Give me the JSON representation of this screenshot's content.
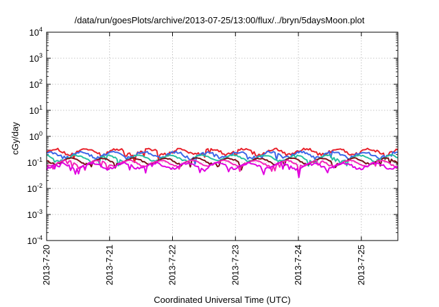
{
  "chart_data": {
    "type": "line",
    "title": "/data/run/goesPlots/archive/2013-07-25/13:00/flux/../bryn/5daysMoon.plot",
    "xlabel": "Coordinated Universal Time (UTC)",
    "ylabel": "cGy/day",
    "yscale": "log",
    "ylim_exp": [
      -4,
      4
    ],
    "xlim_days": [
      0,
      5.58
    ],
    "x_ticks": [
      {
        "label": "2013-7-20",
        "day": 0
      },
      {
        "label": "2013-7-21",
        "day": 1
      },
      {
        "label": "2013-7-22",
        "day": 2
      },
      {
        "label": "2013-7-23",
        "day": 3
      },
      {
        "label": "2013-7-24",
        "day": 4
      },
      {
        "label": "2013-7-25",
        "day": 5
      }
    ],
    "y_ticks": [
      -4,
      -3,
      -2,
      -1,
      0,
      1,
      2,
      3,
      4
    ],
    "grid": true,
    "series": [
      {
        "color": "#e8202a",
        "level": 0.26,
        "amp": 0.13,
        "points": 220
      },
      {
        "color": "#3c66e8",
        "level": 0.2,
        "amp": 0.12,
        "points": 220
      },
      {
        "color": "#26c0a0",
        "level": 0.15,
        "amp": 0.07,
        "points": 220
      },
      {
        "color": "#7a0e18",
        "level": 0.115,
        "amp": 0.06,
        "points": 220
      },
      {
        "color": "#f424b8",
        "level": 0.095,
        "amp": 0.06,
        "points": 220
      },
      {
        "color": "#e000e0",
        "level": 0.075,
        "amp": 0.1,
        "points": 220
      }
    ]
  }
}
